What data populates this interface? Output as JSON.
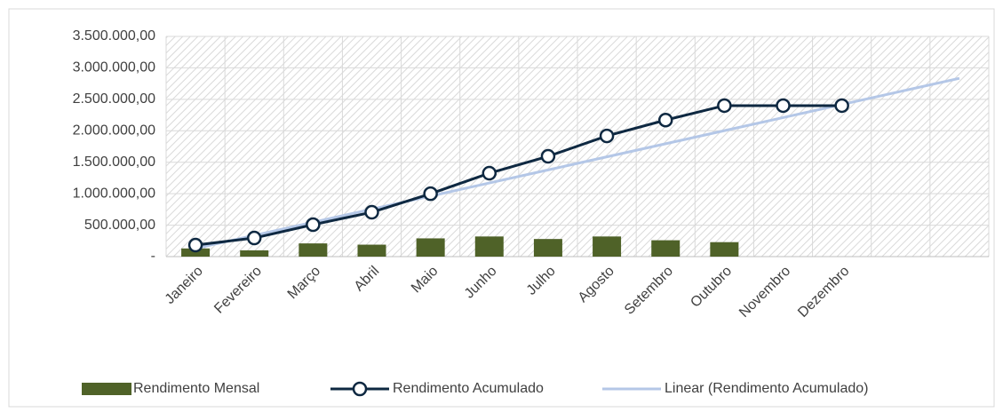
{
  "chart_data": {
    "type": "combo",
    "categories": [
      "Janeiro",
      "Fevereiro",
      "Março",
      "Abril",
      "Maio",
      "Junho",
      "Julho",
      "Agosto",
      "Setembro",
      "Outubro",
      "Novembro",
      "Dezembro",
      null,
      null
    ],
    "series": [
      {
        "name": "Rendimento Mensal",
        "type": "bar",
        "color": "#4f6228",
        "values": [
          130000,
          100000,
          210000,
          190000,
          290000,
          320000,
          280000,
          320000,
          260000,
          230000,
          null,
          null,
          null,
          null
        ]
      },
      {
        "name": "Rendimento Acumulado",
        "type": "line",
        "color": "#0e2841",
        "values": [
          183000,
          296000,
          508000,
          705000,
          1000000,
          1326000,
          1594000,
          1918000,
          2170000,
          2400000,
          2400000,
          2400000,
          null,
          null
        ]
      },
      {
        "name": "Linear (Rendimento Acumulado)",
        "type": "trend",
        "color": "#b4c7e7",
        "values": [
          130000,
          338000,
          546000,
          754000,
          962000,
          1170000,
          1378000,
          1586000,
          1794000,
          2002000,
          2210000,
          2418000,
          2626000,
          2834000
        ]
      }
    ],
    "ylim": [
      0,
      3500000
    ],
    "yticks": [
      {
        "value": 0,
        "label": "-"
      },
      {
        "value": 500000,
        "label": "500.000,00"
      },
      {
        "value": 1000000,
        "label": "1.000.000,00"
      },
      {
        "value": 1500000,
        "label": "1.500.000,00"
      },
      {
        "value": 2000000,
        "label": "2.000.000,00"
      },
      {
        "value": 2500000,
        "label": "2.500.000,00"
      },
      {
        "value": 3000000,
        "label": "3.000.000,00"
      },
      {
        "value": 3500000,
        "label": "3.500.000,00"
      }
    ],
    "grid": true,
    "legend": "bottom"
  }
}
